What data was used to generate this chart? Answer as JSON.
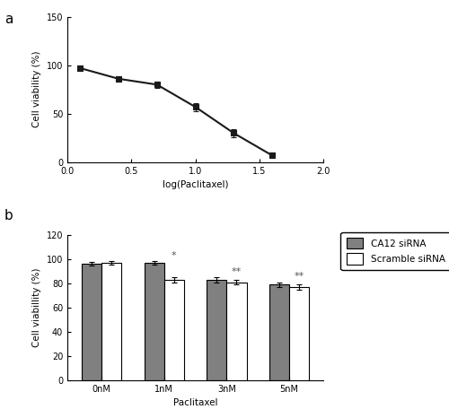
{
  "panel_a": {
    "x": [
      0.1,
      0.4,
      0.7,
      1.0,
      1.3,
      1.6
    ],
    "y": [
      97,
      86,
      80,
      57,
      30,
      7
    ],
    "yerr": [
      3,
      3,
      3,
      4,
      4,
      3
    ],
    "xlim": [
      0.0,
      2.0
    ],
    "ylim": [
      0,
      150
    ],
    "yticks": [
      0,
      50,
      100,
      150
    ],
    "xticks": [
      0.0,
      0.5,
      1.0,
      1.5,
      2.0
    ],
    "xlabel": "log(Paclitaxel)",
    "ylabel": "Cell viability (%)",
    "label": "a",
    "marker": "s",
    "color": "#1a1a1a",
    "linewidth": 1.5,
    "markersize": 4
  },
  "panel_b": {
    "categories": [
      "0nM",
      "1nM",
      "3nM",
      "5nM"
    ],
    "ca12_siRNA_values": [
      96,
      97,
      83,
      79
    ],
    "ca12_siRNA_err": [
      1.5,
      1.5,
      2,
      2
    ],
    "scramble_values": [
      97,
      83,
      81,
      77
    ],
    "scramble_err": [
      1.5,
      2,
      2,
      2
    ],
    "bar_width": 0.32,
    "ylim": [
      0,
      120
    ],
    "yticks": [
      0,
      20,
      40,
      60,
      80,
      100,
      120
    ],
    "xlabel": "Paclitaxel",
    "ylabel": "Cell viabillity (%)",
    "label": "b",
    "color_ca12": "#808080",
    "color_scramble": "#ffffff",
    "significance": [
      "",
      "*",
      "**",
      "**"
    ],
    "sig_above_ca12": [
      false,
      true,
      false,
      false
    ],
    "sig_above_scramble": [
      false,
      false,
      true,
      true
    ],
    "legend_ca12": "CA12 siRNA",
    "legend_scramble": "Scramble siRNA"
  },
  "background_color": "#ffffff"
}
